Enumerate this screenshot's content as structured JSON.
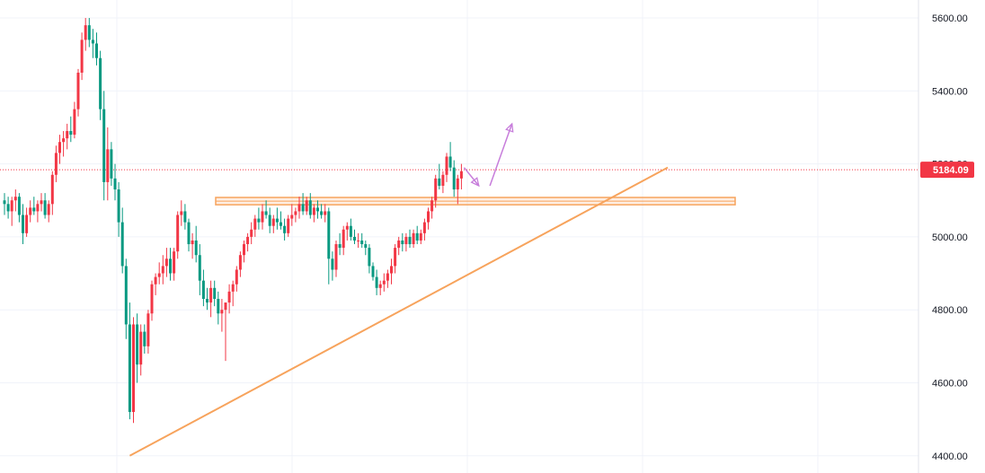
{
  "chart_data": {
    "type": "candlestick",
    "ylim": [
      4390,
      5660
    ],
    "y_ticks": [
      "5600.00",
      "5400.00",
      "5200.00",
      "5000.00",
      "4800.00",
      "4600.00",
      "4400.00"
    ],
    "y_tick_values": [
      5600,
      5400,
      5200,
      5000,
      4800,
      4600,
      4400
    ],
    "current_price": 5184.09,
    "current_price_label": "5184.09",
    "grid": true,
    "colors": {
      "up": "#f23645",
      "down": "#089981",
      "annotation": "#f7a35c",
      "arrow": "#c77ddb",
      "current": "#f23645"
    },
    "candles": [
      [
        5100,
        5120,
        5060,
        5090
      ],
      [
        5090,
        5110,
        5050,
        5070
      ],
      [
        5070,
        5110,
        5030,
        5100
      ],
      [
        5100,
        5130,
        5070,
        5110
      ],
      [
        5110,
        5120,
        5040,
        5060
      ],
      [
        5060,
        5090,
        4980,
        5010
      ],
      [
        5010,
        5080,
        5000,
        5060
      ],
      [
        5060,
        5100,
        5040,
        5080
      ],
      [
        5080,
        5110,
        5060,
        5070
      ],
      [
        5070,
        5100,
        5040,
        5090
      ],
      [
        5090,
        5120,
        5070,
        5100
      ],
      [
        5100,
        5120,
        5050,
        5060
      ],
      [
        5060,
        5100,
        5040,
        5090
      ],
      [
        5090,
        5180,
        5060,
        5170
      ],
      [
        5170,
        5250,
        5150,
        5230
      ],
      [
        5230,
        5280,
        5200,
        5260
      ],
      [
        5260,
        5290,
        5220,
        5270
      ],
      [
        5270,
        5310,
        5240,
        5290
      ],
      [
        5290,
        5330,
        5260,
        5280
      ],
      [
        5280,
        5370,
        5270,
        5350
      ],
      [
        5350,
        5460,
        5330,
        5450
      ],
      [
        5450,
        5560,
        5430,
        5540
      ],
      [
        5540,
        5600,
        5510,
        5580
      ],
      [
        5580,
        5600,
        5520,
        5540
      ],
      [
        5540,
        5570,
        5490,
        5530
      ],
      [
        5530,
        5560,
        5470,
        5490
      ],
      [
        5490,
        5510,
        5320,
        5350
      ],
      [
        5350,
        5400,
        5100,
        5150
      ],
      [
        5150,
        5300,
        5100,
        5240
      ],
      [
        5240,
        5260,
        5140,
        5160
      ],
      [
        5160,
        5200,
        5100,
        5130
      ],
      [
        5130,
        5150,
        5000,
        5040
      ],
      [
        5040,
        5080,
        4900,
        4920
      ],
      [
        4920,
        4940,
        4720,
        4760
      ],
      [
        4760,
        4820,
        4500,
        4520
      ],
      [
        4520,
        4780,
        4490,
        4760
      ],
      [
        4760,
        4790,
        4600,
        4650
      ],
      [
        4650,
        4760,
        4620,
        4740
      ],
      [
        4740,
        4760,
        4680,
        4700
      ],
      [
        4700,
        4800,
        4680,
        4790
      ],
      [
        4790,
        4880,
        4770,
        4870
      ],
      [
        4870,
        4900,
        4840,
        4890
      ],
      [
        4890,
        4930,
        4870,
        4900
      ],
      [
        4900,
        4950,
        4870,
        4920
      ],
      [
        4920,
        4970,
        4890,
        4940
      ],
      [
        4940,
        4970,
        4880,
        4900
      ],
      [
        4900,
        4970,
        4880,
        4960
      ],
      [
        4960,
        5070,
        4940,
        5060
      ],
      [
        5060,
        5100,
        5030,
        5070
      ],
      [
        5070,
        5090,
        5020,
        5040
      ],
      [
        5040,
        5050,
        4960,
        4980
      ],
      [
        4980,
        5010,
        4940,
        4990
      ],
      [
        4990,
        5030,
        4930,
        4950
      ],
      [
        4950,
        4980,
        4840,
        4880
      ],
      [
        4880,
        4910,
        4810,
        4830
      ],
      [
        4830,
        4860,
        4800,
        4820
      ],
      [
        4820,
        4880,
        4780,
        4860
      ],
      [
        4860,
        4880,
        4810,
        4830
      ],
      [
        4830,
        4850,
        4760,
        4790
      ],
      [
        4790,
        4830,
        4740,
        4800
      ],
      [
        4800,
        4820,
        4660,
        4820
      ],
      [
        4820,
        4870,
        4790,
        4850
      ],
      [
        4850,
        4880,
        4810,
        4870
      ],
      [
        4870,
        4920,
        4850,
        4910
      ],
      [
        4910,
        4960,
        4890,
        4950
      ],
      [
        4950,
        4990,
        4930,
        4980
      ],
      [
        4980,
        5010,
        4960,
        5000
      ],
      [
        5000,
        5040,
        4980,
        5020
      ],
      [
        5020,
        5060,
        5000,
        5050
      ],
      [
        5050,
        5080,
        5020,
        5040
      ],
      [
        5040,
        5090,
        5020,
        5070
      ],
      [
        5070,
        5100,
        5050,
        5060
      ],
      [
        5060,
        5080,
        5010,
        5030
      ],
      [
        5030,
        5060,
        5010,
        5050
      ],
      [
        5050,
        5080,
        5020,
        5040
      ],
      [
        5040,
        5070,
        5020,
        5030
      ],
      [
        5030,
        5050,
        4990,
        5010
      ],
      [
        5010,
        5060,
        5000,
        5050
      ],
      [
        5050,
        5090,
        5030,
        5060
      ],
      [
        5060,
        5080,
        5040,
        5070
      ],
      [
        5070,
        5110,
        5050,
        5090
      ],
      [
        5090,
        5120,
        5060,
        5070
      ],
      [
        5070,
        5110,
        5060,
        5100
      ],
      [
        5100,
        5120,
        5050,
        5060
      ],
      [
        5060,
        5090,
        5040,
        5080
      ],
      [
        5080,
        5100,
        5050,
        5070
      ],
      [
        5070,
        5090,
        5050,
        5060
      ],
      [
        5060,
        5090,
        5040,
        5070
      ],
      [
        5070,
        5080,
        4870,
        4940
      ],
      [
        4940,
        4960,
        4880,
        4910
      ],
      [
        4910,
        4990,
        4890,
        4980
      ],
      [
        4980,
        5010,
        4950,
        4970
      ],
      [
        4970,
        5030,
        4950,
        5020
      ],
      [
        5020,
        5040,
        4990,
        5030
      ],
      [
        5030,
        5050,
        4990,
        5000
      ],
      [
        5000,
        5020,
        4980,
        4990
      ],
      [
        4990,
        5010,
        4970,
        4990
      ],
      [
        4990,
        5010,
        4970,
        4980
      ],
      [
        4980,
        4990,
        4950,
        4970
      ],
      [
        4970,
        4980,
        4900,
        4920
      ],
      [
        4920,
        4930,
        4880,
        4890
      ],
      [
        4890,
        4910,
        4840,
        4860
      ],
      [
        4860,
        4880,
        4840,
        4870
      ],
      [
        4870,
        4900,
        4850,
        4880
      ],
      [
        4880,
        4910,
        4860,
        4900
      ],
      [
        4900,
        4940,
        4870,
        4920
      ],
      [
        4920,
        4980,
        4900,
        4970
      ],
      [
        4970,
        5000,
        4950,
        4990
      ],
      [
        4990,
        5010,
        4960,
        4980
      ],
      [
        4980,
        5010,
        4960,
        5000
      ],
      [
        5000,
        5020,
        4970,
        4980
      ],
      [
        4980,
        5020,
        4970,
        5010
      ],
      [
        5010,
        5030,
        4980,
        4990
      ],
      [
        4990,
        5020,
        4980,
        5010
      ],
      [
        5010,
        5050,
        4990,
        5040
      ],
      [
        5040,
        5080,
        5020,
        5070
      ],
      [
        5070,
        5110,
        5050,
        5100
      ],
      [
        5100,
        5170,
        5080,
        5160
      ],
      [
        5160,
        5200,
        5130,
        5140
      ],
      [
        5140,
        5180,
        5120,
        5170
      ],
      [
        5170,
        5230,
        5150,
        5220
      ],
      [
        5220,
        5260,
        5180,
        5190
      ],
      [
        5190,
        5210,
        5110,
        5130
      ],
      [
        5130,
        5170,
        5090,
        5160
      ],
      [
        5160,
        5200,
        5130,
        5180
      ]
    ],
    "horizontal_zone": [
      5088,
      5108
    ],
    "trendline": {
      "start_index": 34,
      "start_price": 4400,
      "end_index": 180,
      "end_price": 5190
    },
    "projection_path": [
      [
        0,
        5190
      ],
      [
        4,
        5140
      ],
      [
        7,
        5140
      ],
      [
        13,
        5310
      ]
    ]
  }
}
